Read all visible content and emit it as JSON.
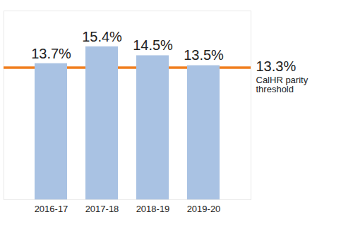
{
  "chart_data": {
    "type": "bar",
    "categories": [
      "2016-17",
      "2017-18",
      "2018-19",
      "2019-20"
    ],
    "values": [
      13.7,
      15.4,
      14.5,
      13.5
    ],
    "value_labels": [
      "13.7%",
      "15.4%",
      "14.5%",
      "13.5%"
    ],
    "color": "#a9c2e3",
    "ylim": [
      0,
      19
    ],
    "yticks": [],
    "grid": false,
    "data_labels": true,
    "tick_labels": "x",
    "threshold": {
      "value": 13.3,
      "label": "13.3%",
      "text": "CalHR parity threshold",
      "color": "#f07e1e"
    }
  }
}
